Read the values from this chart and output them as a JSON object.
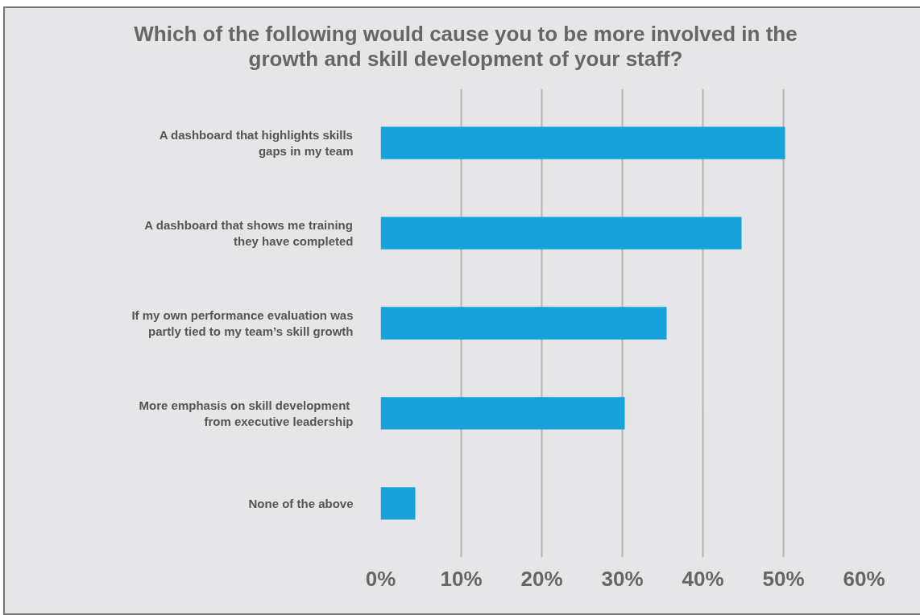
{
  "chart_data": {
    "type": "bar",
    "orientation": "horizontal",
    "title": "Which of the following would cause you to be more involved in the\ngrowth and skill development of your staff?",
    "categories": [
      "A dashboard that highlights skills\ngaps in my team",
      "A dashboard that shows me training\nthey have completed",
      "If my own performance evaluation was\npartly tied to my team’s skill growth",
      "More emphasis on skill development \nfrom executive leadership",
      "None of the above"
    ],
    "values": [
      50.2,
      44.8,
      35.5,
      30.3,
      4.3
    ],
    "color": "#17a2dc",
    "xlim": [
      0,
      60
    ],
    "xticks": [
      {
        "value": 0,
        "label": "0%"
      },
      {
        "value": 10,
        "label": "10%"
      },
      {
        "value": 20,
        "label": "20%"
      },
      {
        "value": 30,
        "label": "30%"
      },
      {
        "value": 40,
        "label": "40%"
      },
      {
        "value": 50,
        "label": "50%"
      },
      {
        "value": 60,
        "label": "60%"
      }
    ],
    "grid": "x"
  }
}
